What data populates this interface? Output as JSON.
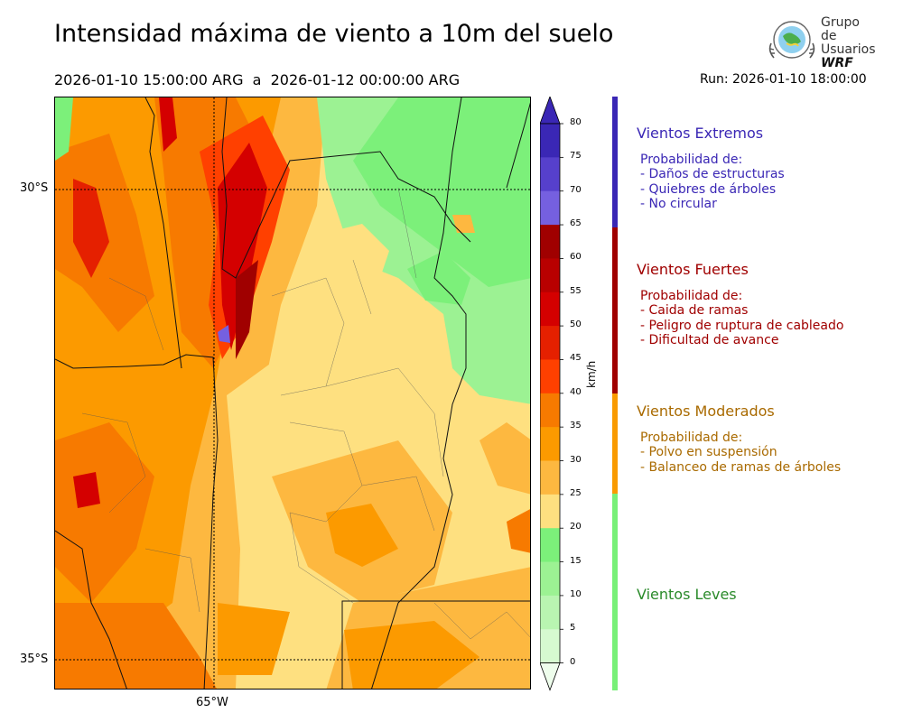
{
  "header": {
    "title": "Intensidad máxima de viento a 10m del suelo",
    "date_range": "2026-01-10 15:00:00 ARG  a  2026-01-12 00:00:00 ARG",
    "run": "Run: 2026-01-10 18:00:00"
  },
  "logo": {
    "line1": "Grupo de",
    "line2": "Usuarios",
    "line3": "WRF"
  },
  "map": {
    "lat_labels": [
      "30°S",
      "35°S"
    ],
    "lon_labels": [
      "65°W"
    ]
  },
  "colorbar": {
    "unit": "km/h",
    "ticks": [
      "80",
      "75",
      "70",
      "65",
      "60",
      "55",
      "50",
      "45",
      "40",
      "35",
      "30",
      "25",
      "20",
      "15",
      "10",
      "5",
      "0"
    ],
    "colors": [
      "#3a27b5",
      "#5640cc",
      "#7560e0",
      "#a00000",
      "#b80000",
      "#d40000",
      "#e52000",
      "#ff4000",
      "#f77a00",
      "#fc9a00",
      "#fdb840",
      "#fee080",
      "#7cf07a",
      "#9cf293",
      "#b9f5b1",
      "#d6fad0",
      "#eefdec"
    ]
  },
  "categories": [
    {
      "name": "Vientos Extremos",
      "color": "#3a27b5",
      "intro": "Probabilidad de:",
      "items": [
        "- Daños de estructuras",
        "- Quiebres de árboles",
        "- No circular"
      ]
    },
    {
      "name": "Vientos Fuertes",
      "color": "#a00000",
      "intro": "Probabilidad de:",
      "items": [
        "- Caida de ramas",
        "- Peligro de ruptura de cableado",
        "- Dificultad de avance"
      ]
    },
    {
      "name": "Vientos Moderados",
      "color": "#a96a00",
      "intro": "Probabilidad de:",
      "items": [
        "- Polvo en suspensión",
        "- Balanceo de ramas de árboles"
      ]
    },
    {
      "name": "Vientos Leves",
      "color": "#2a8a2a",
      "intro": "",
      "items": []
    }
  ],
  "bands": [
    "#3a27b5",
    "#a00000",
    "#f99a00",
    "#78f078"
  ]
}
